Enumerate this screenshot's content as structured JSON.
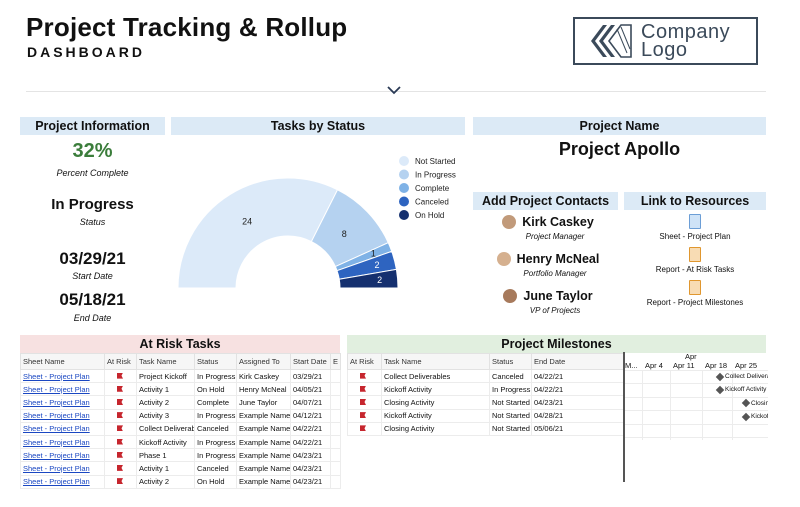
{
  "header": {
    "title": "Project Tracking & Rollup",
    "subtitle": "DASHBOARD",
    "logo_line1": "Company",
    "logo_line2": "Logo"
  },
  "project_info": {
    "heading": "Project Information",
    "percent": "32%",
    "percent_label": "Percent Complete",
    "status": "In Progress",
    "status_label": "Status",
    "start": "03/29/21",
    "start_label": "Start Date",
    "end": "05/18/21",
    "end_label": "End Date"
  },
  "tasks_status": {
    "heading": "Tasks by Status"
  },
  "chart_data": {
    "type": "pie",
    "title": "Tasks by Status",
    "categories": [
      "Not Started",
      "In Progress",
      "Complete",
      "Canceled",
      "On Hold"
    ],
    "values": [
      24,
      8,
      1,
      2,
      2
    ],
    "colors": [
      "#dceaf9",
      "#b5d2f0",
      "#7fb2e6",
      "#2e64c0",
      "#15306f"
    ],
    "legend": "right"
  },
  "project_name": {
    "heading": "Project Name",
    "value": "Project Apollo"
  },
  "contacts": {
    "heading": "Add Project Contacts",
    "people": [
      {
        "name": "Kirk Caskey",
        "role": "Project Manager"
      },
      {
        "name": "Henry McNeal",
        "role": "Portfolio Manager"
      },
      {
        "name": "June Taylor",
        "role": "VP of Projects"
      }
    ]
  },
  "resources": {
    "heading": "Link to Resources",
    "items": [
      {
        "label": "Sheet - Project Plan",
        "icon": "sheet-icon"
      },
      {
        "label": "Report - At Risk Tasks",
        "icon": "report-icon"
      },
      {
        "label": "Report - Project Milestones",
        "icon": "report-icon"
      }
    ]
  },
  "at_risk": {
    "heading": "At Risk Tasks",
    "columns": [
      "Sheet Name",
      "At Risk",
      "Task Name",
      "Status",
      "Assigned To",
      "Start Date",
      "E"
    ],
    "rows": [
      [
        "Sheet - Project Plan",
        "",
        "Project Kickoff",
        "In Progress",
        "Kirk Caskey",
        "03/29/21"
      ],
      [
        "Sheet - Project Plan",
        "",
        "Activity 1",
        "On Hold",
        "Henry McNeal",
        "04/05/21"
      ],
      [
        "Sheet - Project Plan",
        "",
        "Activity 2",
        "Complete",
        "June Taylor",
        "04/07/21"
      ],
      [
        "Sheet - Project Plan",
        "",
        "Activity 3",
        "In Progress",
        "Example Name",
        "04/12/21"
      ],
      [
        "Sheet - Project Plan",
        "",
        "Collect Deliverables",
        "Canceled",
        "Example Name",
        "04/22/21"
      ],
      [
        "Sheet - Project Plan",
        "",
        "Kickoff Activity",
        "In Progress",
        "Example Name",
        "04/22/21"
      ],
      [
        "Sheet - Project Plan",
        "",
        "Phase 1",
        "In Progress",
        "Example Name",
        "04/23/21"
      ],
      [
        "Sheet - Project Plan",
        "",
        "Activity 1",
        "Canceled",
        "Example Name",
        "04/23/21"
      ],
      [
        "Sheet - Project Plan",
        "",
        "Activity 2",
        "On Hold",
        "Example Name",
        "04/23/21"
      ]
    ]
  },
  "milestones": {
    "heading": "Project Milestones",
    "columns": [
      "At Risk",
      "Task Name",
      "Status",
      "End Date"
    ],
    "rows": [
      [
        "",
        "Collect Deliverables",
        "Canceled",
        "04/22/21"
      ],
      [
        "",
        "Kickoff Activity",
        "In Progress",
        "04/22/21"
      ],
      [
        "",
        "Closing Activity",
        "Not Started",
        "04/23/21"
      ],
      [
        "",
        "Kickoff Activity",
        "Not Started",
        "04/28/21"
      ],
      [
        "",
        "Closing Activity",
        "Not Started",
        "05/06/21"
      ]
    ]
  },
  "gantt": {
    "month": "Apr",
    "weeks": [
      "M...",
      "Apr 4",
      "Apr 11",
      "Apr 18",
      "Apr 25"
    ],
    "items": [
      "Collect Deliverables",
      "Kickoff Activity",
      "Closing Activity",
      "Kickoff Activity"
    ]
  }
}
